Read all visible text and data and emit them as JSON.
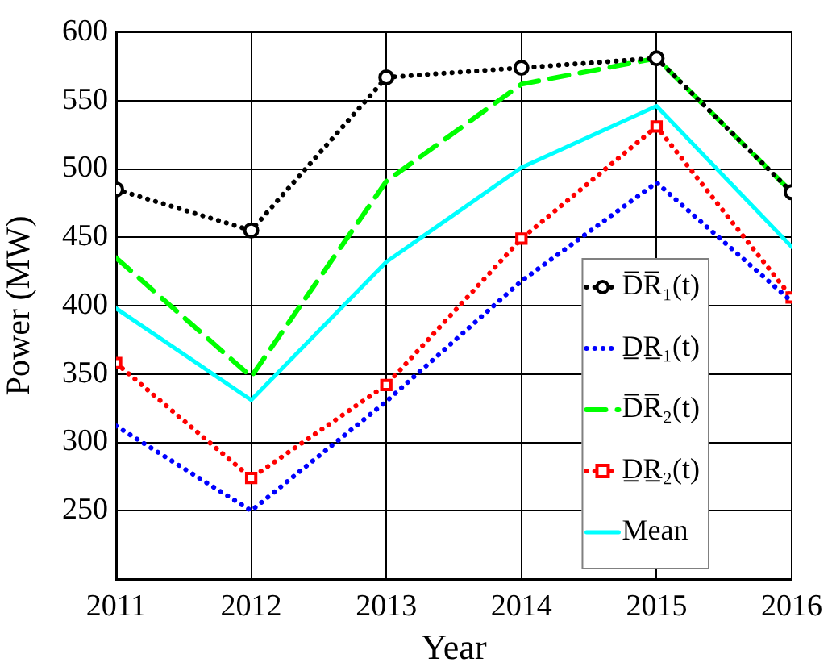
{
  "chart_data": {
    "type": "line",
    "xlabel": "Year",
    "ylabel": "Power (MW)",
    "x": [
      2011,
      2012,
      2013,
      2014,
      2015,
      2016
    ],
    "xlim": [
      2011,
      2016
    ],
    "xticks": [
      2011,
      2012,
      2013,
      2014,
      2015,
      2016
    ],
    "ylim": [
      200,
      600
    ],
    "yticks": [
      250,
      300,
      350,
      400,
      450,
      500,
      550,
      600
    ],
    "grid": true,
    "legend": "bottom right",
    "series": [
      {
        "name": "D̅R̅₁(t)",
        "color": "#000000",
        "marker": "circle",
        "line_style": "dotted",
        "values": [
          485,
          455,
          567,
          574,
          581,
          483
        ]
      },
      {
        "name": "D̲R̲₁(t)",
        "color": "#0000ff",
        "marker": "none",
        "line_style": "dotted",
        "values": [
          312,
          250,
          330,
          418,
          490,
          403
        ]
      },
      {
        "name": "D̅R̅₂(t)",
        "color": "#00ff00",
        "marker": "none",
        "line_style": "dashed",
        "values": [
          435,
          348,
          491,
          562,
          581,
          483
        ]
      },
      {
        "name": "D̲R̲₂(t)",
        "color": "#ff0000",
        "marker": "square",
        "line_style": "dotted",
        "values": [
          358,
          274,
          342,
          449,
          531,
          406
        ]
      },
      {
        "name": "Mean",
        "color": "#00ffff",
        "marker": "none",
        "line_style": "solid",
        "values": [
          398,
          331,
          432,
          501,
          546,
          443
        ]
      }
    ]
  }
}
